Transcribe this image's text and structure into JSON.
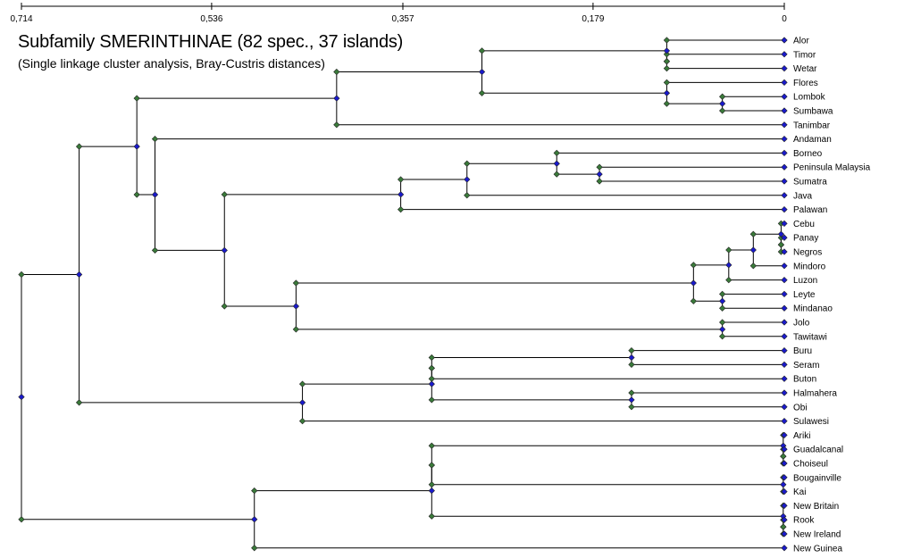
{
  "title": "Subfamily SMERINTHINAE (82 spec., 37 islands)",
  "subtitle": "(Single linkage cluster analysis, Bray-Custris distances)",
  "axis": {
    "max": 0.714,
    "ticks": [
      {
        "value": 0.714,
        "label": "0,714"
      },
      {
        "value": 0.536,
        "label": "0,536"
      },
      {
        "value": 0.357,
        "label": "0,357"
      },
      {
        "value": 0.179,
        "label": "0,179"
      },
      {
        "value": 0,
        "label": "0"
      }
    ]
  },
  "colors": {
    "line": "#000000",
    "merge_node": "#1a1acc",
    "branch_node": "#3a7a3a",
    "leaf_node": "#1a1acc"
  },
  "leaves": [
    "Alor",
    "Timor",
    "Wetar",
    "Flores",
    "Lombok",
    "Sumbawa",
    "Tanimbar",
    "Andaman",
    "Borneo",
    "Peninsula Malaysia",
    "Sumatra",
    "Java",
    "Palawan",
    "Cebu",
    "Panay",
    "Negros",
    "Mindoro",
    "Luzon",
    "Leyte",
    "Mindanao",
    "Jolo",
    "Tawitawi",
    "Buru",
    "Seram",
    "Buton",
    "Halmahera",
    "Obi",
    "Sulawesi",
    "Ariki",
    "Guadalcanal",
    "Choiseul",
    "Bougainville",
    "Kai",
    "New Britain",
    "Rook",
    "New Ireland",
    "New Guinea"
  ],
  "tree": {
    "h": 0.714,
    "c": [
      {
        "h": 0.66,
        "c": [
          {
            "h": 0.606,
            "c": [
              {
                "h": 0.419,
                "c": [
                  {
                    "h": 0.283,
                    "c": [
                      {
                        "h": 0.11,
                        "c": [
                          {
                            "l": "Alor"
                          },
                          {
                            "h": 0.11,
                            "c": [
                              {
                                "l": "Timor"
                              },
                              {
                                "l": "Wetar"
                              }
                            ]
                          }
                        ]
                      },
                      {
                        "h": 0.11,
                        "c": [
                          {
                            "l": "Flores"
                          },
                          {
                            "h": 0.058,
                            "c": [
                              {
                                "l": "Lombok"
                              },
                              {
                                "l": "Sumbawa"
                              }
                            ]
                          }
                        ]
                      }
                    ]
                  },
                  {
                    "l": "Tanimbar"
                  }
                ]
              },
              {
                "h": 0.589,
                "c": [
                  {
                    "l": "Andaman"
                  },
                  {
                    "h": 0.524,
                    "c": [
                      {
                        "h": 0.359,
                        "c": [
                          {
                            "h": 0.297,
                            "c": [
                              {
                                "h": 0.213,
                                "c": [
                                  {
                                    "l": "Borneo"
                                  },
                                  {
                                    "h": 0.173,
                                    "c": [
                                      {
                                        "l": "Peninsula Malaysia"
                                      },
                                      {
                                        "l": "Sumatra"
                                      }
                                    ]
                                  }
                                ]
                              },
                              {
                                "l": "Java"
                              }
                            ]
                          },
                          {
                            "l": "Palawan"
                          }
                        ]
                      },
                      {
                        "h": 0.457,
                        "c": [
                          {
                            "h": 0.085,
                            "c": [
                              {
                                "h": 0.052,
                                "c": [
                                  {
                                    "h": 0.029,
                                    "c": [
                                      {
                                        "h": 0.003,
                                        "c": [
                                          {
                                            "l": "Cebu"
                                          },
                                          {
                                            "h": 0.003,
                                            "c": [
                                              {
                                                "l": "Panay"
                                              },
                                              {
                                                "l": "Negros"
                                              }
                                            ]
                                          }
                                        ]
                                      },
                                      {
                                        "l": "Mindoro"
                                      }
                                    ]
                                  },
                                  {
                                    "l": "Luzon"
                                  }
                                ]
                              },
                              {
                                "h": 0.058,
                                "c": [
                                  {
                                    "l": "Leyte"
                                  },
                                  {
                                    "l": "Mindanao"
                                  }
                                ]
                              }
                            ]
                          },
                          {
                            "h": 0.058,
                            "c": [
                              {
                                "l": "Jolo"
                              },
                              {
                                "l": "Tawitawi"
                              }
                            ]
                          }
                        ]
                      }
                    ]
                  }
                ]
              }
            ]
          },
          {
            "h": 0.451,
            "c": [
              {
                "h": 0.33,
                "c": [
                  {
                    "h": 0.33,
                    "c": [
                      {
                        "h": 0.143,
                        "c": [
                          {
                            "l": "Buru"
                          },
                          {
                            "l": "Seram"
                          }
                        ]
                      },
                      {
                        "l": "Buton"
                      }
                    ]
                  },
                  {
                    "h": 0.143,
                    "c": [
                      {
                        "l": "Halmahera"
                      },
                      {
                        "l": "Obi"
                      }
                    ]
                  }
                ]
              },
              {
                "l": "Sulawesi"
              }
            ]
          }
        ]
      },
      {
        "h": 0.496,
        "c": [
          {
            "h": 0.33,
            "c": [
              {
                "h": 0.33,
                "c": [
                  {
                    "h": 0.001,
                    "c": [
                      {
                        "l": "Ariki"
                      },
                      {
                        "h": 0.001,
                        "c": [
                          {
                            "l": "Guadalcanal"
                          },
                          {
                            "l": "Choiseul"
                          }
                        ]
                      }
                    ]
                  },
                  {
                    "h": 0.001,
                    "c": [
                      {
                        "l": "Bougainville"
                      },
                      {
                        "l": "Kai"
                      }
                    ]
                  }
                ]
              },
              {
                "h": 0.001,
                "c": [
                  {
                    "l": "New Britain"
                  },
                  {
                    "h": 0.001,
                    "c": [
                      {
                        "l": "Rook"
                      },
                      {
                        "l": "New Ireland"
                      }
                    ]
                  }
                ]
              }
            ]
          },
          {
            "l": "New Guinea"
          }
        ]
      }
    ]
  }
}
